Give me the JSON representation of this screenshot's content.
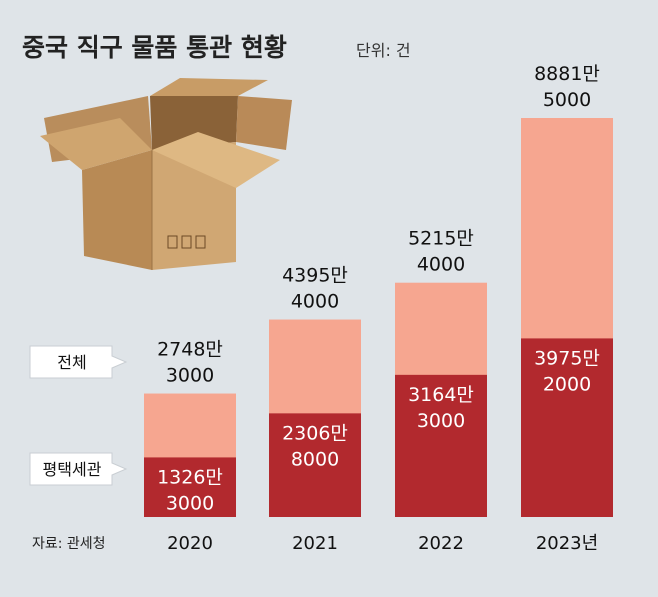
{
  "title": "중국 직구 물품 통관 현황",
  "unit": "단위: 건",
  "source": "자료: 관세청",
  "legend": {
    "total": "전체",
    "sub": "평택세관"
  },
  "colors": {
    "background": "#dfe4e8",
    "total": "#f6a690",
    "sub": "#b2292e"
  },
  "chart_data": {
    "type": "bar",
    "title": "중국 직구 물품 통관 현황",
    "ylabel": "단위: 건",
    "categories": [
      "2020",
      "2021",
      "2022",
      "2023년"
    ],
    "series": [
      {
        "name": "전체",
        "values": [
          27483000,
          43954000,
          52154000,
          88815000
        ]
      },
      {
        "name": "평택세관",
        "values": [
          13263000,
          23068000,
          31643000,
          39752000
        ]
      }
    ],
    "labels": {
      "total": [
        {
          "line1": "2748만",
          "line2": "3000"
        },
        {
          "line1": "4395만",
          "line2": "4000"
        },
        {
          "line1": "5215만",
          "line2": "4000"
        },
        {
          "line1": "8881만",
          "line2": "5000"
        }
      ],
      "sub": [
        {
          "line1": "1326만",
          "line2": "3000"
        },
        {
          "line1": "2306만",
          "line2": "8000"
        },
        {
          "line1": "3164만",
          "line2": "3000"
        },
        {
          "line1": "3975만",
          "line2": "2000"
        }
      ]
    },
    "ylim": [
      0,
      88815000
    ]
  }
}
